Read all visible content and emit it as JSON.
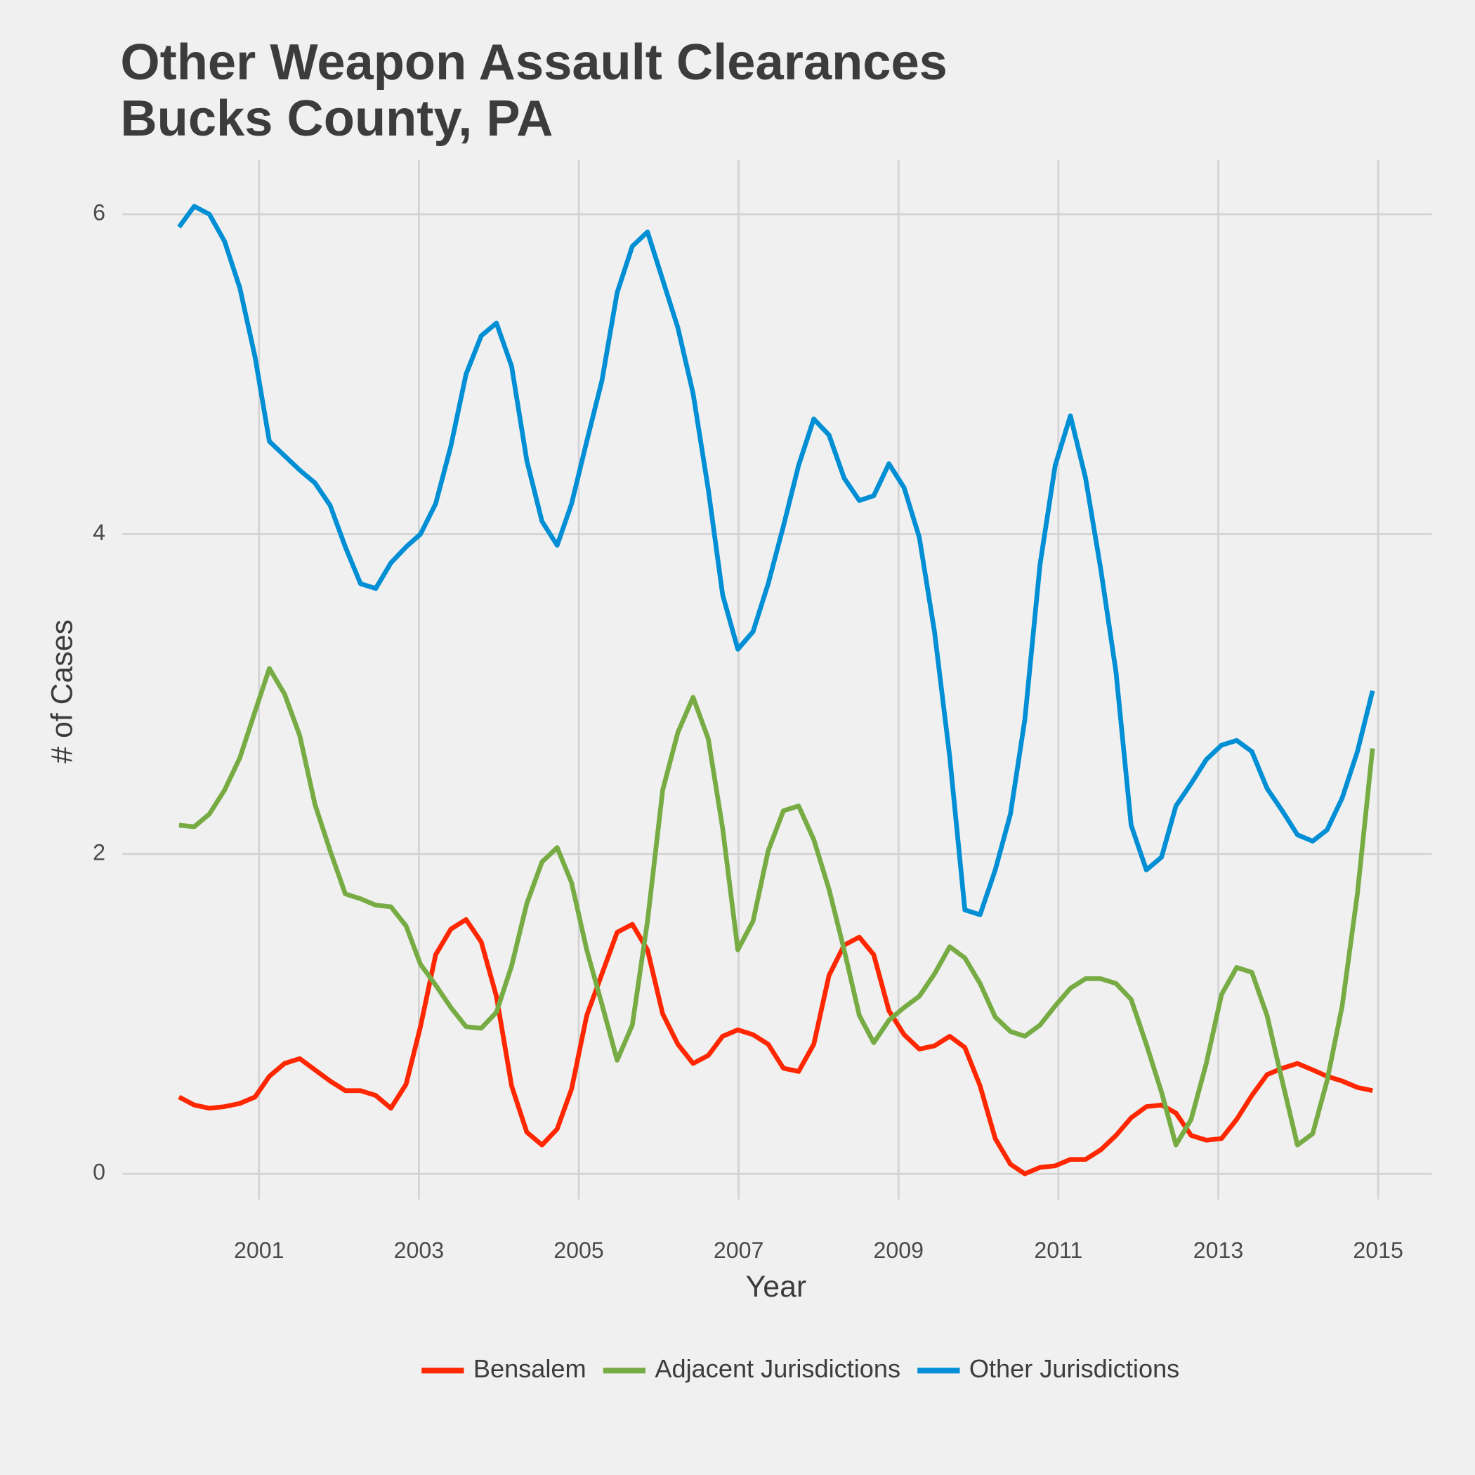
{
  "chart_data": {
    "type": "line",
    "title": [
      "Other Weapon Assault Clearances",
      "Bucks County, PA"
    ],
    "x_label": "Year",
    "y_label": "# of Cases",
    "x": [
      2000.0,
      2000.19,
      2000.38,
      2000.57,
      2000.76,
      2000.95,
      2001.13,
      2001.32,
      2001.51,
      2001.7,
      2001.89,
      2002.08,
      2002.27,
      2002.46,
      2002.65,
      2002.84,
      2003.02,
      2003.21,
      2003.4,
      2003.59,
      2003.78,
      2003.97,
      2004.16,
      2004.35,
      2004.54,
      2004.73,
      2004.91,
      2005.1,
      2005.29,
      2005.48,
      2005.67,
      2005.86,
      2006.05,
      2006.24,
      2006.43,
      2006.62,
      2006.8,
      2006.99,
      2007.18,
      2007.37,
      2007.56,
      2007.75,
      2007.94,
      2008.13,
      2008.32,
      2008.51,
      2008.69,
      2008.88,
      2009.07,
      2009.26,
      2009.45,
      2009.64,
      2009.83,
      2010.02,
      2010.21,
      2010.4,
      2010.58,
      2010.77,
      2010.96,
      2011.15,
      2011.34,
      2011.53,
      2011.72,
      2011.91,
      2012.1,
      2012.29,
      2012.47,
      2012.66,
      2012.85,
      2013.04,
      2013.23,
      2013.42,
      2013.61,
      2013.8,
      2013.99,
      2014.18,
      2014.36,
      2014.55,
      2014.74,
      2014.93
    ],
    "series": [
      {
        "name": "Bensalem",
        "color": "#ff2700",
        "values": [
          0.48,
          0.43,
          0.41,
          0.42,
          0.44,
          0.48,
          0.61,
          0.69,
          0.72,
          0.65,
          0.58,
          0.52,
          0.52,
          0.49,
          0.41,
          0.56,
          0.92,
          1.37,
          1.53,
          1.59,
          1.45,
          1.11,
          0.55,
          0.26,
          0.18,
          0.28,
          0.53,
          0.99,
          1.25,
          1.51,
          1.56,
          1.4,
          1.0,
          0.81,
          0.69,
          0.74,
          0.86,
          0.9,
          0.87,
          0.81,
          0.66,
          0.64,
          0.81,
          1.24,
          1.43,
          1.48,
          1.37,
          1.02,
          0.87,
          0.78,
          0.8,
          0.86,
          0.79,
          0.55,
          0.22,
          0.06,
          0.0,
          0.04,
          0.05,
          0.09,
          0.09,
          0.15,
          0.24,
          0.35,
          0.42,
          0.43,
          0.38,
          0.24,
          0.21,
          0.22,
          0.34,
          0.49,
          0.62,
          0.66,
          0.69,
          0.65,
          0.61,
          0.58,
          0.54,
          0.52
        ]
      },
      {
        "name": "Adjacent Jurisdictions",
        "color": "#77ab43",
        "values": [
          2.18,
          2.17,
          2.25,
          2.4,
          2.6,
          2.89,
          3.16,
          3.0,
          2.74,
          2.31,
          2.02,
          1.75,
          1.72,
          1.68,
          1.67,
          1.55,
          1.31,
          1.18,
          1.04,
          0.92,
          0.91,
          1.01,
          1.3,
          1.69,
          1.95,
          2.04,
          1.82,
          1.4,
          1.06,
          0.71,
          0.93,
          1.58,
          2.4,
          2.76,
          2.98,
          2.72,
          2.16,
          1.4,
          1.58,
          2.02,
          2.27,
          2.3,
          2.09,
          1.78,
          1.4,
          0.99,
          0.82,
          0.96,
          1.04,
          1.11,
          1.25,
          1.42,
          1.35,
          1.19,
          0.98,
          0.89,
          0.86,
          0.93,
          1.05,
          1.16,
          1.22,
          1.22,
          1.19,
          1.09,
          0.81,
          0.51,
          0.18,
          0.34,
          0.69,
          1.12,
          1.29,
          1.26,
          0.99,
          0.58,
          0.18,
          0.25,
          0.58,
          1.05,
          1.75,
          2.66
        ]
      },
      {
        "name": "Other Jurisdictions",
        "color": "#008fd5",
        "values": [
          5.92,
          6.05,
          6.0,
          5.83,
          5.54,
          5.11,
          4.58,
          4.49,
          4.4,
          4.32,
          4.18,
          3.92,
          3.69,
          3.66,
          3.82,
          3.92,
          4.0,
          4.19,
          4.55,
          5.0,
          5.24,
          5.32,
          5.05,
          4.46,
          4.08,
          3.93,
          4.19,
          4.58,
          4.96,
          5.51,
          5.8,
          5.89,
          5.59,
          5.29,
          4.88,
          4.28,
          3.62,
          3.28,
          3.39,
          3.69,
          4.05,
          4.43,
          4.72,
          4.62,
          4.35,
          4.21,
          4.24,
          4.44,
          4.29,
          3.98,
          3.39,
          2.61,
          1.65,
          1.62,
          1.9,
          2.25,
          2.84,
          3.81,
          4.43,
          4.74,
          4.35,
          3.78,
          3.14,
          2.18,
          1.9,
          1.98,
          2.3,
          2.44,
          2.59,
          2.68,
          2.71,
          2.64,
          2.41,
          2.27,
          2.12,
          2.08,
          2.15,
          2.35,
          2.64,
          3.02
        ]
      }
    ],
    "xlim": [
      1999.29,
      2015.67
    ],
    "xticks": [
      2001,
      2003,
      2005,
      2007,
      2009,
      2011,
      2013,
      2015
    ],
    "ylim": [
      -0.16,
      6.34
    ],
    "yticks": [
      0,
      2,
      4,
      6
    ],
    "grid": true,
    "legend": "bottom"
  }
}
